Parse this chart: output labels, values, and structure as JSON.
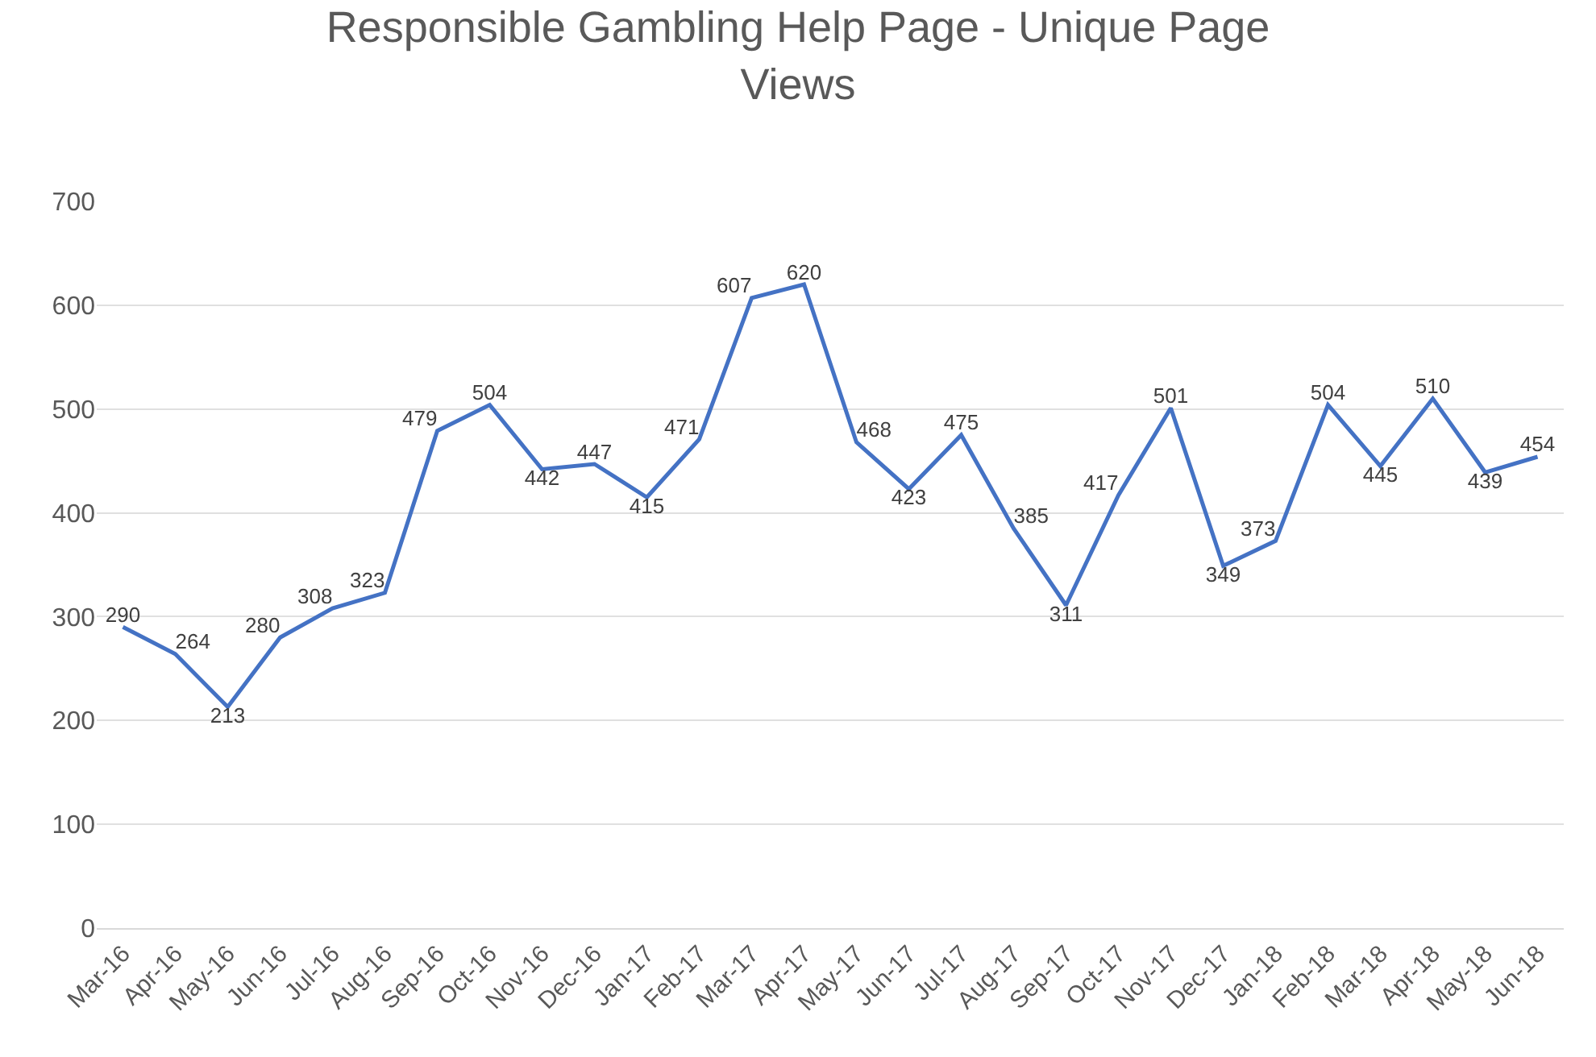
{
  "chart_data": {
    "type": "line",
    "title": "Responsible Gambling Help Page - Unique Page Views",
    "categories": [
      "Mar-16",
      "Apr-16",
      "May-16",
      "Jun-16",
      "Jul-16",
      "Aug-16",
      "Sep-16",
      "Oct-16",
      "Nov-16",
      "Dec-16",
      "Jan-17",
      "Feb-17",
      "Mar-17",
      "Apr-17",
      "May-17",
      "Jun-17",
      "Jul-17",
      "Aug-17",
      "Sep-17",
      "Oct-17",
      "Nov-17",
      "Dec-17",
      "Jan-18",
      "Feb-18",
      "Mar-18",
      "Apr-18",
      "May-18",
      "Jun-18"
    ],
    "series": [
      {
        "color": "#4472c4",
        "values": [
          290,
          264,
          213,
          280,
          308,
          323,
          479,
          504,
          442,
          447,
          415,
          471,
          607,
          620,
          468,
          423,
          475,
          385,
          311,
          417,
          501,
          349,
          373,
          504,
          445,
          510,
          439,
          454
        ]
      }
    ],
    "ylim": [
      0,
      700
    ],
    "yticks": [
      0,
      100,
      200,
      300,
      400,
      500,
      600,
      700
    ],
    "grid": "y",
    "legend": false,
    "marker": "none",
    "line_style": "solid",
    "data_labels": true
  }
}
